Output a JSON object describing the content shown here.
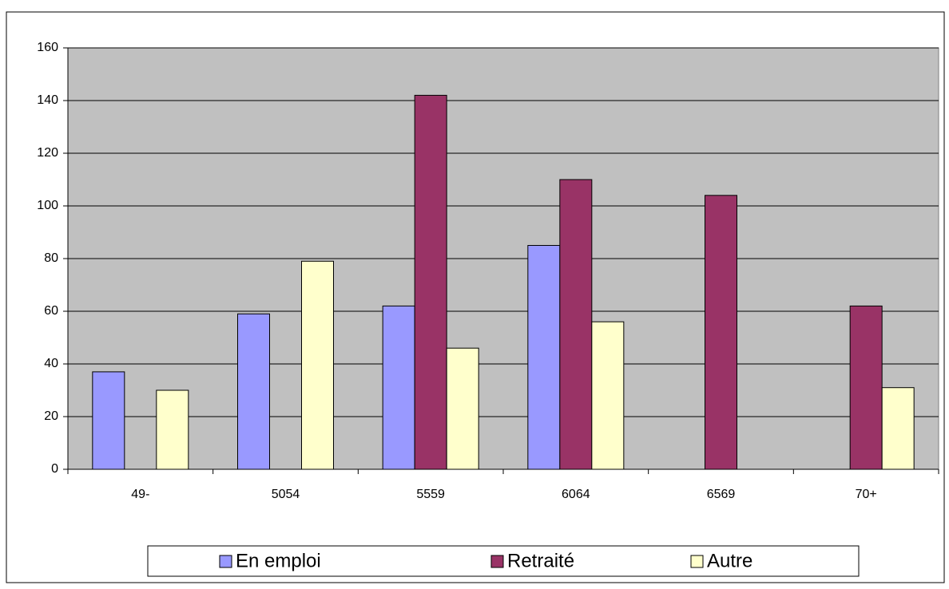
{
  "chart_data": {
    "type": "bar",
    "categories": [
      "49-",
      "5054",
      "5559",
      "6064",
      "6569",
      "70+"
    ],
    "series": [
      {
        "name": "En emploi",
        "color": "#9999ff",
        "values": [
          37,
          59,
          62,
          85,
          null,
          null
        ]
      },
      {
        "name": "Retraité",
        "color": "#993366",
        "values": [
          null,
          null,
          142,
          110,
          104,
          62
        ]
      },
      {
        "name": "Autre",
        "color": "#ffffcc",
        "values": [
          30,
          79,
          46,
          56,
          null,
          31
        ]
      }
    ],
    "ylim": [
      0,
      160
    ],
    "yticks": [
      0,
      20,
      40,
      60,
      80,
      100,
      120,
      140,
      160
    ],
    "grid": true,
    "plot_background": "#c0c0c0",
    "legend": "bottom"
  }
}
